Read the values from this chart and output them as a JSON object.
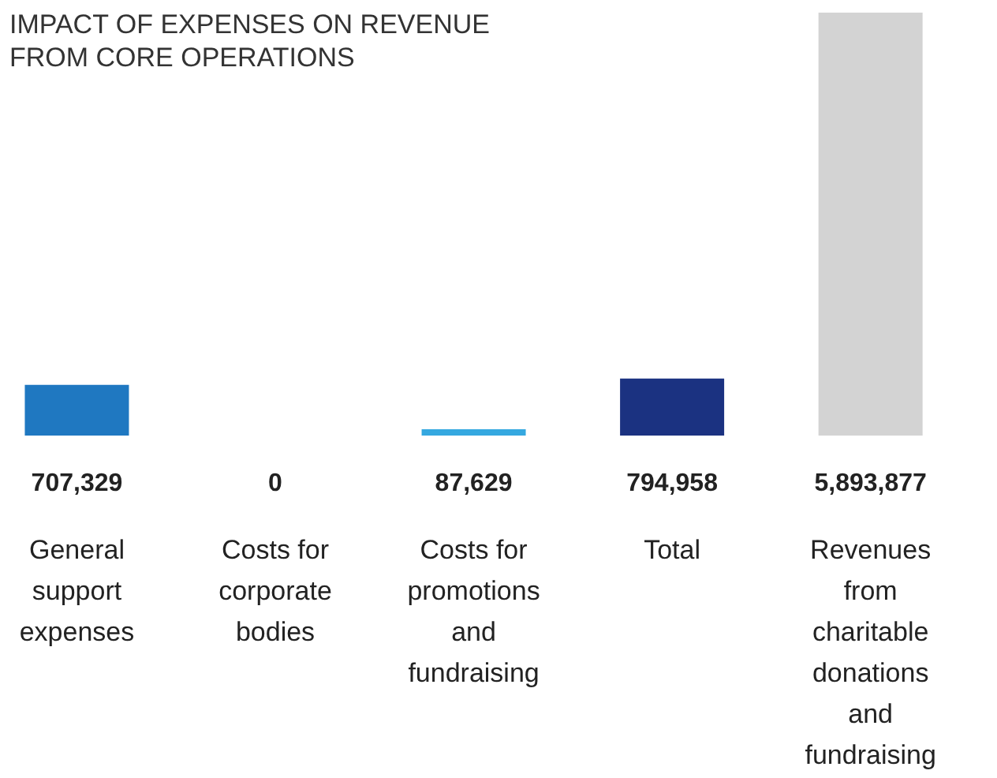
{
  "chart_data": {
    "type": "bar",
    "title": "IMPACT OF EXPENSES ON REVENUE FROM CORE OPERATIONS",
    "categories": [
      "General support expenses",
      "Costs for corporate bodies",
      "Costs for promotions and fundraising",
      "Total",
      "Revenues from charitable donations and fundraising"
    ],
    "values": [
      707329,
      0,
      87629,
      794958,
      5893877
    ],
    "colors": [
      "#1f78c1",
      "#9fd6f0",
      "#35a8e0",
      "#1b3281",
      "#d3d3d3"
    ],
    "value_labels": [
      "707,329",
      "0",
      "87,629",
      "794,958",
      "5,893,877"
    ]
  }
}
